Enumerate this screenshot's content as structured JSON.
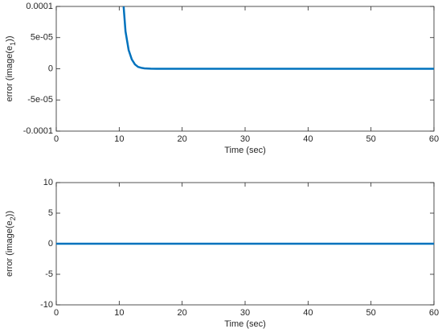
{
  "chart_data": [
    {
      "type": "line",
      "xlabel": "Time (sec)",
      "ylabel": [
        "error (image(e",
        "1",
        "))"
      ],
      "x": [
        10.7,
        11,
        11.5,
        12,
        12.5,
        13,
        13.5,
        14,
        15,
        16,
        20,
        30,
        40,
        50,
        60
      ],
      "series": [
        {
          "color": "#0072bd",
          "values": [
            0.0001,
            6e-05,
            3e-05,
            1.5e-05,
            7e-06,
            3e-06,
            1.5e-06,
            7e-07,
            2e-07,
            0,
            0,
            0,
            0,
            0,
            0
          ]
        }
      ],
      "xlim": [
        0,
        60
      ],
      "xticks": [
        0,
        10,
        20,
        30,
        40,
        50,
        60
      ],
      "ylim": [
        -0.0001,
        0.0001
      ],
      "yticks": [
        -0.0001,
        {
          "value": -5e-05,
          "label": "-5e-05"
        },
        0,
        {
          "value": 5e-05,
          "label": "5e-05"
        },
        0.0001
      ]
    },
    {
      "type": "line",
      "xlabel": "Time (sec)",
      "ylabel": [
        "error (image(e",
        "2",
        "))"
      ],
      "x": [
        0,
        60
      ],
      "series": [
        {
          "color": "#0072bd",
          "values": [
            0,
            0
          ]
        }
      ],
      "xlim": [
        0,
        60
      ],
      "xticks": [
        0,
        10,
        20,
        30,
        40,
        50,
        60
      ],
      "ylim": [
        -10,
        10
      ],
      "yticks": [
        -10,
        -5,
        0,
        5,
        10
      ]
    }
  ]
}
